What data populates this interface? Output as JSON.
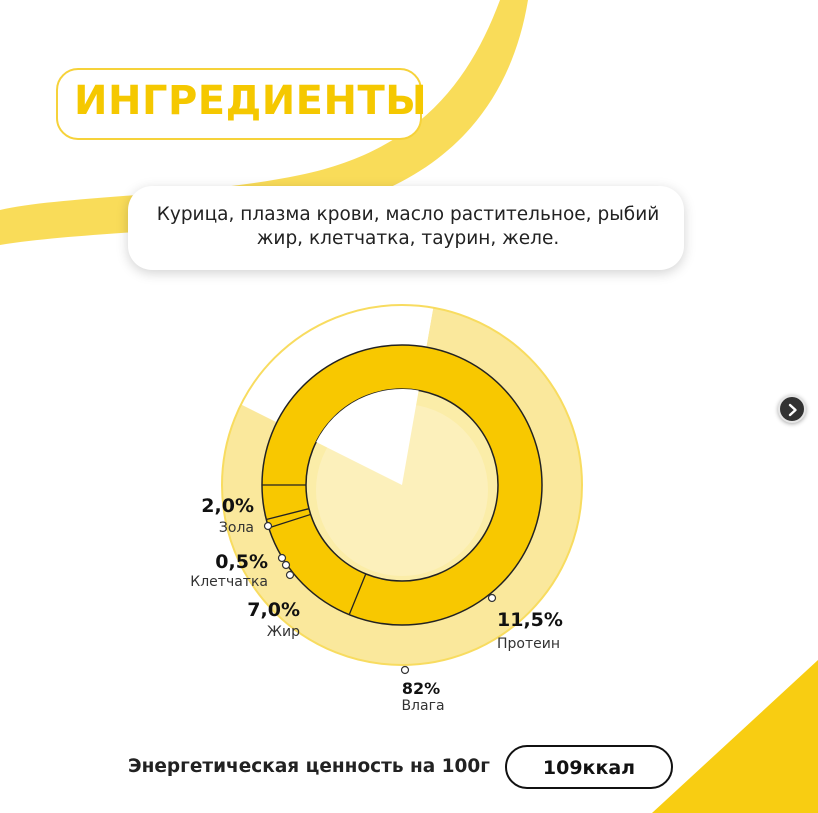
{
  "header": {
    "title": "ИНГРЕДИЕНТЫ"
  },
  "ingredients": {
    "text": "Курица, плазма крови, масло растительное, рыбий жир,  клетчатка, таурин, желе."
  },
  "chart_data": {
    "type": "pie",
    "series": [
      {
        "label": "Влага",
        "value": 82,
        "value_label": "82%"
      },
      {
        "label": "Протеин",
        "value": 11.5,
        "value_label": "11,5%"
      },
      {
        "label": "Жир",
        "value": 7.0,
        "value_label": "7,0%"
      },
      {
        "label": "Клетчатка",
        "value": 0.5,
        "value_label": "0,5%"
      },
      {
        "label": "Зола",
        "value": 2.0,
        "value_label": "2,0%"
      }
    ],
    "colors": {
      "moisture": "#fae89c",
      "nutrients": "#f8c800",
      "inner": "#fbeda8"
    }
  },
  "energy": {
    "label": "Энергетическая ценность на 100г",
    "value": "109ккал"
  },
  "nav": {
    "next_icon": "chevron-right-icon"
  }
}
